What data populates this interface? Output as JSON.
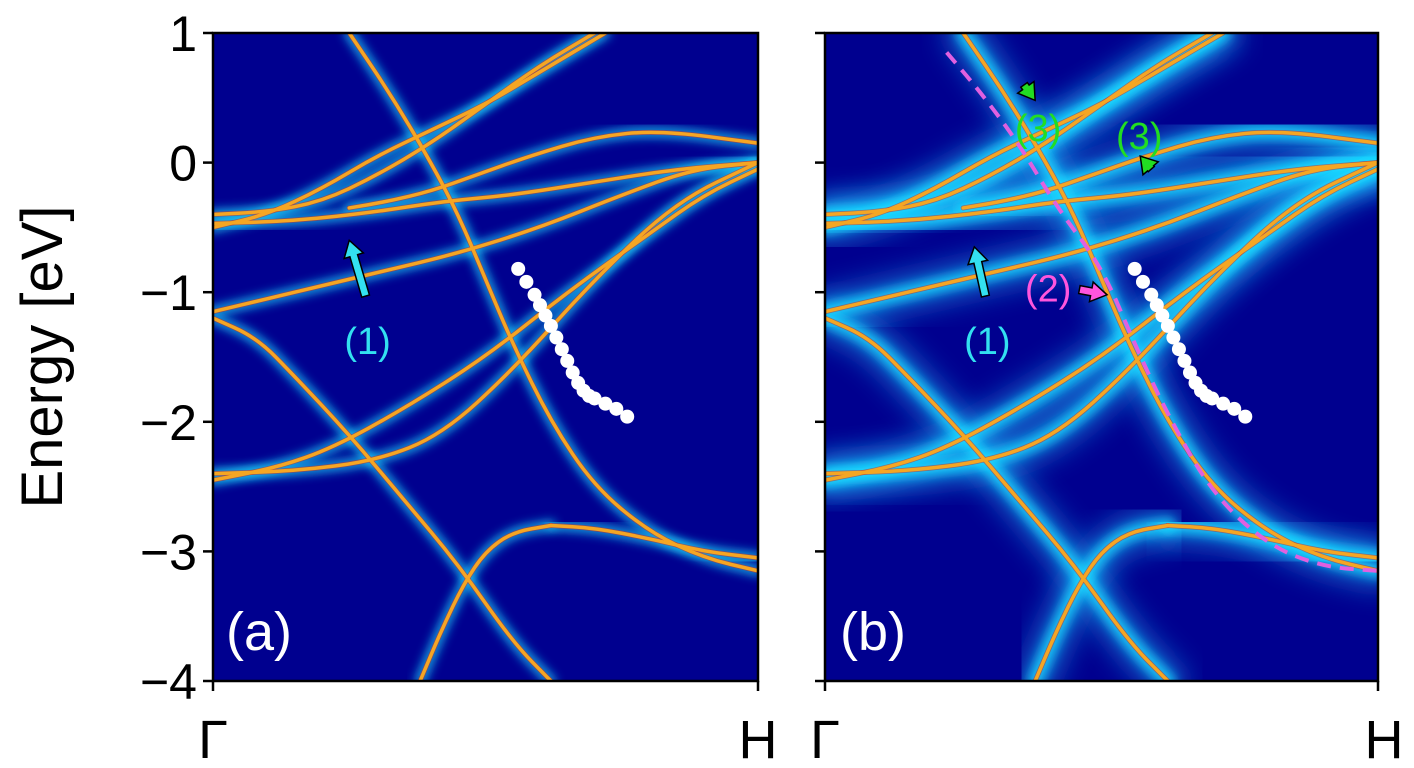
{
  "chart_data": [
    {
      "type": "heatmap",
      "panel_label": "(a)",
      "ylabel": "Energy [eV]",
      "xlabel": "",
      "ylim": [
        -4,
        1
      ],
      "xlim": [
        0,
        1
      ],
      "yticks": [
        1,
        0,
        -1,
        -2,
        -3,
        -4
      ],
      "ytick_labels": [
        "1",
        "0",
        "−1",
        "−2",
        "−3",
        "−4"
      ],
      "xtick_labels": [
        "Γ",
        "H"
      ],
      "colormap": "jet",
      "background_color": "#00008f",
      "band_line_color": "#f5a623",
      "bands": [
        {
          "x": [
            0,
            0.15,
            0.3,
            0.42,
            0.55,
            0.7,
            0.85,
            1.0
          ],
          "y": [
            -0.47,
            -0.45,
            -0.38,
            -0.3,
            -0.25,
            -0.15,
            -0.05,
            0.0
          ]
        },
        {
          "x": [
            0,
            0.1,
            0.2,
            0.3,
            0.4,
            0.5,
            0.6,
            0.72
          ],
          "y": [
            -0.5,
            -0.4,
            -0.2,
            0.05,
            0.25,
            0.45,
            0.7,
            1.0
          ]
        },
        {
          "x": [
            0,
            0.1,
            0.2,
            0.3,
            0.4,
            0.5,
            0.6,
            0.7
          ],
          "y": [
            -0.4,
            -0.38,
            -0.3,
            -0.1,
            0.15,
            0.45,
            0.75,
            1.0
          ]
        },
        {
          "x": [
            0.25,
            0.32,
            0.4,
            0.48,
            0.58,
            0.7,
            0.82,
            1.0
          ],
          "y": [
            -0.35,
            -0.3,
            -0.22,
            -0.1,
            0.05,
            0.2,
            0.25,
            0.15
          ]
        },
        {
          "x": [
            0.25,
            0.33,
            0.4,
            0.45,
            0.5,
            0.55,
            0.62,
            0.7,
            0.8,
            0.9,
            1.0
          ],
          "y": [
            1.0,
            0.5,
            0.0,
            -0.4,
            -0.9,
            -1.4,
            -2.0,
            -2.5,
            -2.85,
            -3.05,
            -3.15
          ]
        },
        {
          "x": [
            0.0,
            0.1,
            0.2,
            0.3,
            0.45,
            0.6,
            0.75,
            0.88,
            1.0
          ],
          "y": [
            -1.15,
            -1.05,
            -0.95,
            -0.85,
            -0.7,
            -0.5,
            -0.25,
            -0.05,
            0.0
          ]
        },
        {
          "x": [
            0.0,
            0.08,
            0.15,
            0.25,
            0.35,
            0.45,
            0.55,
            0.62
          ],
          "y": [
            -1.2,
            -1.35,
            -1.65,
            -2.1,
            -2.6,
            -3.1,
            -3.7,
            -4.0
          ]
        },
        {
          "x": [
            0.0,
            0.12,
            0.22,
            0.35,
            0.5,
            0.65,
            0.8,
            0.9,
            1.0
          ],
          "y": [
            -2.45,
            -2.35,
            -2.2,
            -1.9,
            -1.5,
            -1.0,
            -0.55,
            -0.25,
            -0.05
          ]
        },
        {
          "x": [
            0.0,
            0.15,
            0.3,
            0.42,
            0.55,
            0.7,
            0.85,
            1.0
          ],
          "y": [
            -2.4,
            -2.38,
            -2.3,
            -2.1,
            -1.6,
            -0.9,
            -0.3,
            0.0
          ]
        },
        {
          "x": [
            0.38,
            0.42,
            0.46,
            0.5,
            0.55,
            0.62
          ],
          "y": [
            -4.0,
            -3.6,
            -3.25,
            -3.0,
            -2.85,
            -2.8
          ]
        },
        {
          "x": [
            0.62,
            0.7,
            0.8,
            0.9,
            1.0
          ],
          "y": [
            -2.8,
            -2.82,
            -2.9,
            -3.0,
            -3.05
          ]
        }
      ],
      "white_dots": {
        "x": [
          0.56,
          0.575,
          0.59,
          0.6,
          0.61,
          0.62,
          0.63,
          0.64,
          0.65,
          0.66,
          0.67,
          0.68,
          0.69,
          0.7,
          0.72,
          0.74,
          0.76
        ],
        "y": [
          -0.82,
          -0.92,
          -1.02,
          -1.1,
          -1.18,
          -1.26,
          -1.35,
          -1.44,
          -1.53,
          -1.62,
          -1.7,
          -1.76,
          -1.8,
          -1.82,
          -1.86,
          -1.9,
          -1.96
        ]
      },
      "annotations": [
        {
          "text": "(1)",
          "color": "#33e0f0",
          "arrow_from": [
            0.28,
            -1.03
          ],
          "arrow_to": [
            0.25,
            -0.6
          ]
        }
      ]
    },
    {
      "type": "heatmap",
      "panel_label": "(b)",
      "ylabel": "",
      "xlabel": "",
      "ylim": [
        -4,
        1
      ],
      "xlim": [
        0,
        1
      ],
      "yticks": [
        1,
        0,
        -1,
        -2,
        -3,
        -4
      ],
      "xtick_labels": [
        "Γ",
        "H"
      ],
      "colormap": "jet",
      "background_color": "#00008f",
      "band_line_color": "#f5a623",
      "bands_same_as_panel": "(a)",
      "dashed_curve": {
        "color": "#e060e0",
        "x": [
          0.22,
          0.28,
          0.35,
          0.42,
          0.5,
          0.56,
          0.62,
          0.7,
          0.8,
          0.9,
          1.0
        ],
        "y": [
          0.85,
          0.55,
          0.15,
          -0.35,
          -0.8,
          -1.4,
          -1.95,
          -2.55,
          -2.95,
          -3.12,
          -3.15
        ]
      },
      "white_dots": {
        "x": [
          0.56,
          0.575,
          0.59,
          0.6,
          0.61,
          0.62,
          0.63,
          0.64,
          0.65,
          0.66,
          0.67,
          0.68,
          0.69,
          0.7,
          0.72,
          0.74,
          0.76
        ],
        "y": [
          -0.82,
          -0.92,
          -1.02,
          -1.1,
          -1.18,
          -1.26,
          -1.35,
          -1.44,
          -1.53,
          -1.62,
          -1.7,
          -1.76,
          -1.8,
          -1.82,
          -1.86,
          -1.9,
          -1.96
        ]
      },
      "annotations": [
        {
          "text": "(1)",
          "color": "#33e0f0",
          "arrow_from": [
            0.29,
            -1.03
          ],
          "arrow_to": [
            0.27,
            -0.65
          ]
        },
        {
          "text": "(2)",
          "color": "#ff55dd",
          "arrow_from": [
            0.46,
            -0.98
          ],
          "arrow_to": [
            0.51,
            -1.02
          ]
        },
        {
          "text": "(3)",
          "color": "#22dd22",
          "arrow_from": [
            0.36,
            0.6
          ],
          "arrow_to": [
            0.38,
            0.48
          ]
        },
        {
          "text": "(3)",
          "color": "#22dd22",
          "arrow_from": [
            0.59,
            -0.05
          ],
          "arrow_to": [
            0.57,
            0.05
          ]
        }
      ]
    }
  ]
}
